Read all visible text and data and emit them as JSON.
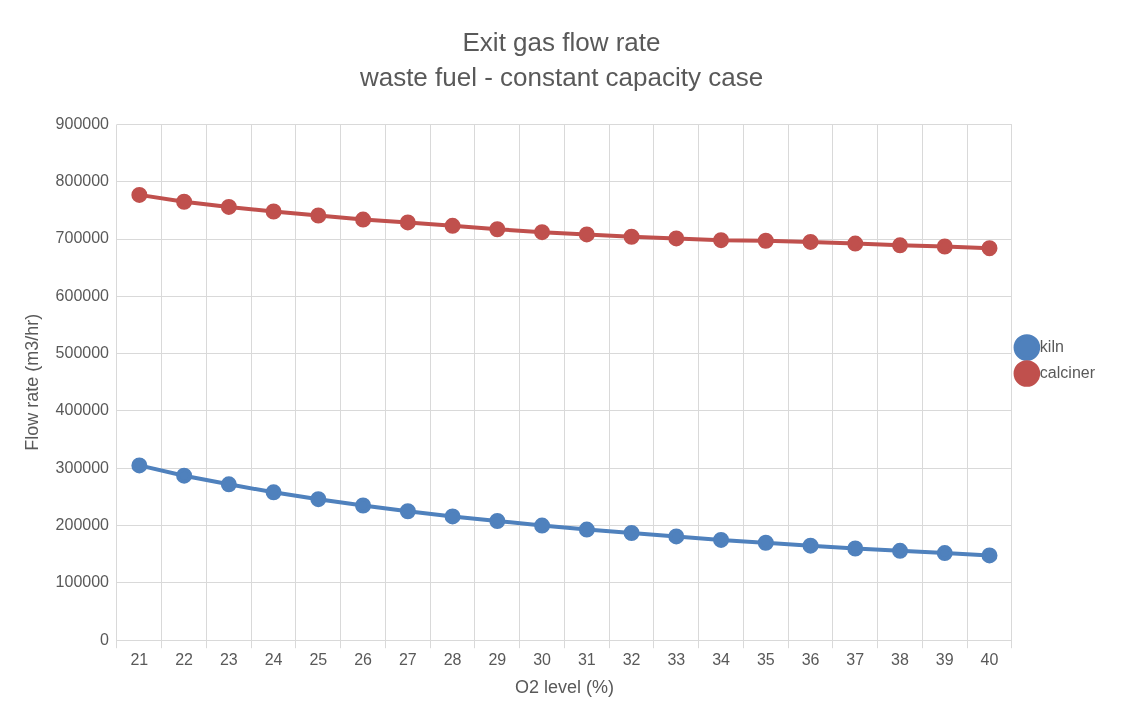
{
  "chart_data": {
    "type": "line",
    "title": "Exit gas flow rate",
    "subtitle": "waste fuel - constant capacity case",
    "xlabel": "O2 level (%)",
    "ylabel": "Flow rate (m3/hr)",
    "categories": [
      "21",
      "22",
      "23",
      "24",
      "25",
      "26",
      "27",
      "28",
      "29",
      "30",
      "31",
      "32",
      "33",
      "34",
      "35",
      "36",
      "37",
      "38",
      "39",
      "40"
    ],
    "series": [
      {
        "name": "kiln",
        "color": "#4f81bd",
        "values": [
          305000,
          287000,
          272000,
          258000,
          246000,
          235000,
          225000,
          216000,
          208000,
          200000,
          193000,
          187000,
          181000,
          175000,
          170000,
          165000,
          160000,
          156000,
          152000,
          148000
        ]
      },
      {
        "name": "calciner",
        "color": "#c0504d",
        "values": [
          777000,
          765000,
          756000,
          748000,
          741000,
          734000,
          729000,
          723000,
          717000,
          712000,
          708000,
          704000,
          701000,
          698000,
          697000,
          695000,
          692000,
          689000,
          687000,
          684000
        ]
      }
    ],
    "ylim": [
      0,
      900000
    ],
    "yticks": [
      0,
      100000,
      200000,
      300000,
      400000,
      500000,
      600000,
      700000,
      800000,
      900000
    ],
    "grid": true,
    "legend": "right",
    "marker": "circle",
    "line_style": "solid"
  }
}
